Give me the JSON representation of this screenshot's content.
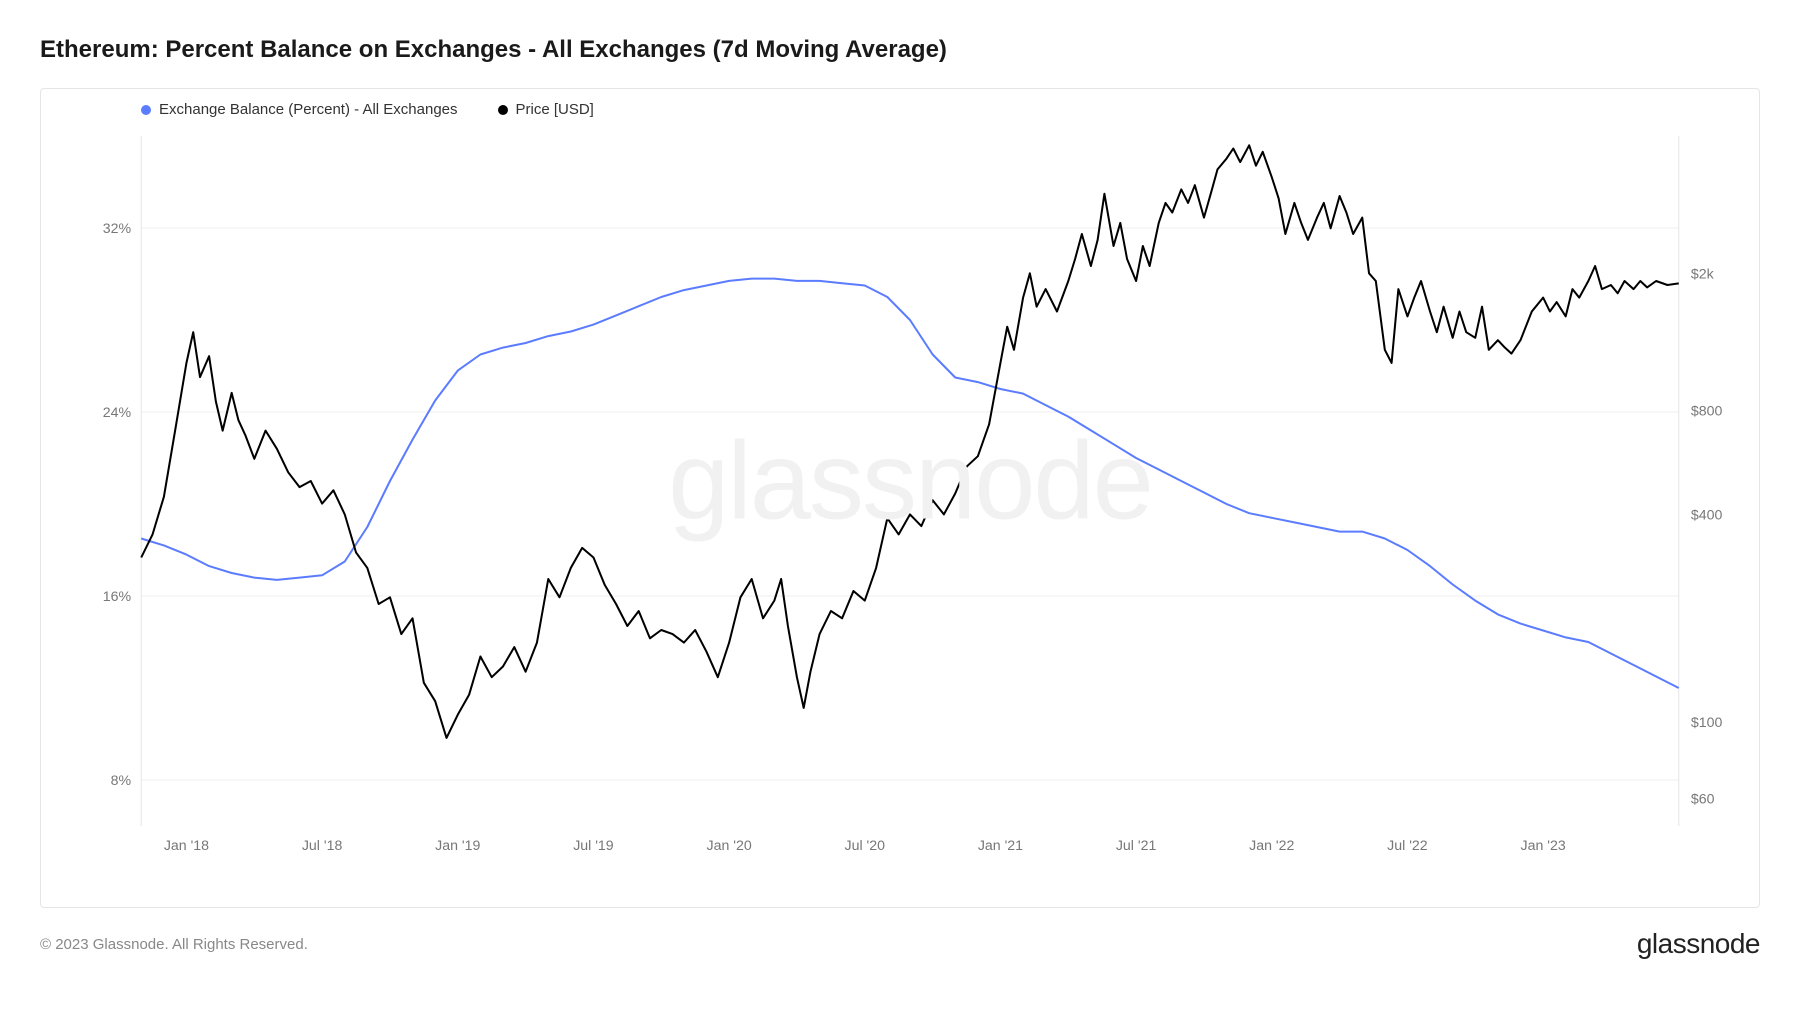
{
  "title": "Ethereum: Percent Balance on Exchanges - All Exchanges (7d Moving Average)",
  "legend": {
    "series1": {
      "label": "Exchange Balance (Percent) - All Exchanges",
      "color": "#5b7cff"
    },
    "series2": {
      "label": "Price [USD]",
      "color": "#000000"
    }
  },
  "watermark": "glassnode",
  "chart": {
    "type": "line-dual-axis",
    "background_color": "#ffffff",
    "grid_color": "#efefef",
    "axis_label_color": "#777777",
    "axis_label_fontsize": 14,
    "y_left": {
      "ticks": [
        8,
        16,
        24,
        32
      ],
      "tick_labels": [
        "8%",
        "16%",
        "24%",
        "32%"
      ],
      "min": 6,
      "max": 36
    },
    "y_right": {
      "scale": "log",
      "ticks": [
        60,
        100,
        400,
        800,
        2000
      ],
      "tick_labels": [
        "$60",
        "$100",
        "$400",
        "$800",
        "$2k"
      ],
      "min": 50,
      "max": 5000
    },
    "x_axis": {
      "min": 0,
      "max": 68,
      "ticks": [
        2,
        8,
        14,
        20,
        26,
        32,
        38,
        44,
        50,
        56,
        62
      ],
      "tick_labels": [
        "Jan '18",
        "Jul '18",
        "Jan '19",
        "Jul '19",
        "Jan '20",
        "Jul '20",
        "Jan '21",
        "Jul '21",
        "Jan '22",
        "Jul '22",
        "Jan '23"
      ]
    },
    "series_balance": {
      "color": "#5b7cff",
      "stroke_width": 2,
      "points": [
        [
          0,
          18.5
        ],
        [
          1,
          18.2
        ],
        [
          2,
          17.8
        ],
        [
          3,
          17.3
        ],
        [
          4,
          17.0
        ],
        [
          5,
          16.8
        ],
        [
          6,
          16.7
        ],
        [
          7,
          16.8
        ],
        [
          8,
          16.9
        ],
        [
          9,
          17.5
        ],
        [
          10,
          19.0
        ],
        [
          11,
          21.0
        ],
        [
          12,
          22.8
        ],
        [
          13,
          24.5
        ],
        [
          14,
          25.8
        ],
        [
          15,
          26.5
        ],
        [
          16,
          26.8
        ],
        [
          17,
          27.0
        ],
        [
          18,
          27.3
        ],
        [
          19,
          27.5
        ],
        [
          20,
          27.8
        ],
        [
          21,
          28.2
        ],
        [
          22,
          28.6
        ],
        [
          23,
          29.0
        ],
        [
          24,
          29.3
        ],
        [
          25,
          29.5
        ],
        [
          26,
          29.7
        ],
        [
          27,
          29.8
        ],
        [
          28,
          29.8
        ],
        [
          29,
          29.7
        ],
        [
          30,
          29.7
        ],
        [
          31,
          29.6
        ],
        [
          32,
          29.5
        ],
        [
          33,
          29.0
        ],
        [
          34,
          28.0
        ],
        [
          35,
          26.5
        ],
        [
          36,
          25.5
        ],
        [
          37,
          25.3
        ],
        [
          38,
          25.0
        ],
        [
          39,
          24.8
        ],
        [
          40,
          24.3
        ],
        [
          41,
          23.8
        ],
        [
          42,
          23.2
        ],
        [
          43,
          22.6
        ],
        [
          44,
          22.0
        ],
        [
          45,
          21.5
        ],
        [
          46,
          21.0
        ],
        [
          47,
          20.5
        ],
        [
          48,
          20.0
        ],
        [
          49,
          19.6
        ],
        [
          50,
          19.4
        ],
        [
          51,
          19.2
        ],
        [
          52,
          19.0
        ],
        [
          53,
          18.8
        ],
        [
          54,
          18.8
        ],
        [
          55,
          18.5
        ],
        [
          56,
          18.0
        ],
        [
          57,
          17.3
        ],
        [
          58,
          16.5
        ],
        [
          59,
          15.8
        ],
        [
          60,
          15.2
        ],
        [
          61,
          14.8
        ],
        [
          62,
          14.5
        ],
        [
          63,
          14.2
        ],
        [
          64,
          14.0
        ],
        [
          65,
          13.5
        ],
        [
          66,
          13.0
        ],
        [
          67,
          12.5
        ],
        [
          68,
          12.0
        ]
      ]
    },
    "series_price": {
      "color": "#000000",
      "stroke_width": 2,
      "points": [
        [
          0,
          300
        ],
        [
          0.5,
          350
        ],
        [
          1,
          450
        ],
        [
          1.5,
          700
        ],
        [
          2,
          1100
        ],
        [
          2.3,
          1350
        ],
        [
          2.6,
          1000
        ],
        [
          3,
          1150
        ],
        [
          3.3,
          850
        ],
        [
          3.6,
          700
        ],
        [
          4,
          900
        ],
        [
          4.3,
          750
        ],
        [
          4.6,
          680
        ],
        [
          5,
          580
        ],
        [
          5.5,
          700
        ],
        [
          6,
          620
        ],
        [
          6.5,
          530
        ],
        [
          7,
          480
        ],
        [
          7.5,
          500
        ],
        [
          8,
          430
        ],
        [
          8.5,
          470
        ],
        [
          9,
          400
        ],
        [
          9.5,
          310
        ],
        [
          10,
          280
        ],
        [
          10.5,
          220
        ],
        [
          11,
          230
        ],
        [
          11.5,
          180
        ],
        [
          12,
          200
        ],
        [
          12.5,
          130
        ],
        [
          13,
          115
        ],
        [
          13.5,
          90
        ],
        [
          14,
          105
        ],
        [
          14.5,
          120
        ],
        [
          15,
          155
        ],
        [
          15.5,
          135
        ],
        [
          16,
          145
        ],
        [
          16.5,
          165
        ],
        [
          17,
          140
        ],
        [
          17.5,
          170
        ],
        [
          18,
          260
        ],
        [
          18.5,
          230
        ],
        [
          19,
          280
        ],
        [
          19.5,
          320
        ],
        [
          20,
          300
        ],
        [
          20.5,
          250
        ],
        [
          21,
          220
        ],
        [
          21.5,
          190
        ],
        [
          22,
          210
        ],
        [
          22.5,
          175
        ],
        [
          23,
          185
        ],
        [
          23.5,
          180
        ],
        [
          24,
          170
        ],
        [
          24.5,
          185
        ],
        [
          25,
          160
        ],
        [
          25.5,
          135
        ],
        [
          26,
          170
        ],
        [
          26.5,
          230
        ],
        [
          27,
          260
        ],
        [
          27.5,
          200
        ],
        [
          28,
          225
        ],
        [
          28.3,
          260
        ],
        [
          28.6,
          190
        ],
        [
          29,
          135
        ],
        [
          29.3,
          110
        ],
        [
          29.6,
          140
        ],
        [
          30,
          180
        ],
        [
          30.5,
          210
        ],
        [
          31,
          200
        ],
        [
          31.5,
          240
        ],
        [
          32,
          225
        ],
        [
          32.5,
          280
        ],
        [
          33,
          390
        ],
        [
          33.5,
          350
        ],
        [
          34,
          400
        ],
        [
          34.5,
          370
        ],
        [
          35,
          440
        ],
        [
          35.5,
          400
        ],
        [
          36,
          460
        ],
        [
          36.5,
          550
        ],
        [
          37,
          590
        ],
        [
          37.5,
          730
        ],
        [
          38,
          1100
        ],
        [
          38.3,
          1400
        ],
        [
          38.6,
          1200
        ],
        [
          39,
          1700
        ],
        [
          39.3,
          2000
        ],
        [
          39.6,
          1600
        ],
        [
          40,
          1800
        ],
        [
          40.5,
          1550
        ],
        [
          41,
          1900
        ],
        [
          41.3,
          2200
        ],
        [
          41.6,
          2600
        ],
        [
          42,
          2100
        ],
        [
          42.3,
          2500
        ],
        [
          42.6,
          3400
        ],
        [
          43,
          2400
        ],
        [
          43.3,
          2800
        ],
        [
          43.6,
          2200
        ],
        [
          44,
          1900
        ],
        [
          44.3,
          2400
        ],
        [
          44.6,
          2100
        ],
        [
          45,
          2800
        ],
        [
          45.3,
          3200
        ],
        [
          45.6,
          3000
        ],
        [
          46,
          3500
        ],
        [
          46.3,
          3200
        ],
        [
          46.6,
          3600
        ],
        [
          47,
          2900
        ],
        [
          47.3,
          3400
        ],
        [
          47.6,
          4000
        ],
        [
          48,
          4300
        ],
        [
          48.3,
          4600
        ],
        [
          48.6,
          4200
        ],
        [
          49,
          4700
        ],
        [
          49.3,
          4100
        ],
        [
          49.6,
          4500
        ],
        [
          50,
          3800
        ],
        [
          50.3,
          3300
        ],
        [
          50.6,
          2600
        ],
        [
          51,
          3200
        ],
        [
          51.3,
          2800
        ],
        [
          51.6,
          2500
        ],
        [
          52,
          2900
        ],
        [
          52.3,
          3200
        ],
        [
          52.6,
          2700
        ],
        [
          53,
          3350
        ],
        [
          53.3,
          3000
        ],
        [
          53.6,
          2600
        ],
        [
          54,
          2900
        ],
        [
          54.3,
          2000
        ],
        [
          54.6,
          1900
        ],
        [
          55,
          1200
        ],
        [
          55.3,
          1100
        ],
        [
          55.6,
          1800
        ],
        [
          56,
          1500
        ],
        [
          56.3,
          1700
        ],
        [
          56.6,
          1900
        ],
        [
          57,
          1550
        ],
        [
          57.3,
          1350
        ],
        [
          57.6,
          1600
        ],
        [
          58,
          1300
        ],
        [
          58.3,
          1550
        ],
        [
          58.6,
          1350
        ],
        [
          59,
          1300
        ],
        [
          59.3,
          1600
        ],
        [
          59.6,
          1200
        ],
        [
          60,
          1280
        ],
        [
          60.3,
          1220
        ],
        [
          60.6,
          1170
        ],
        [
          61,
          1280
        ],
        [
          61.5,
          1550
        ],
        [
          62,
          1700
        ],
        [
          62.3,
          1550
        ],
        [
          62.6,
          1650
        ],
        [
          63,
          1500
        ],
        [
          63.3,
          1800
        ],
        [
          63.6,
          1700
        ],
        [
          64,
          1900
        ],
        [
          64.3,
          2100
        ],
        [
          64.6,
          1800
        ],
        [
          65,
          1850
        ],
        [
          65.3,
          1750
        ],
        [
          65.6,
          1900
        ],
        [
          66,
          1800
        ],
        [
          66.3,
          1900
        ],
        [
          66.6,
          1820
        ],
        [
          67,
          1900
        ],
        [
          67.5,
          1850
        ],
        [
          68,
          1870
        ]
      ]
    }
  },
  "footer": {
    "copyright": "© 2023 Glassnode. All Rights Reserved.",
    "brand": "glassnode"
  }
}
